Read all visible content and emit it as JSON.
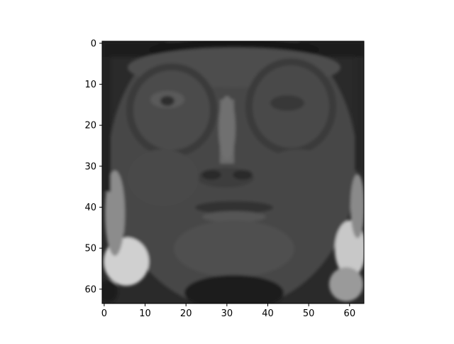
{
  "chart_data": {
    "type": "heatmap",
    "title": "",
    "xlabel": "",
    "ylabel": "",
    "colormap": "gray",
    "image_shape": [
      64,
      64
    ],
    "xlim": [
      -0.5,
      63.5
    ],
    "ylim": [
      63.5,
      -0.5
    ],
    "x_ticks": [
      0,
      10,
      20,
      30,
      40,
      50,
      60
    ],
    "y_ticks": [
      0,
      10,
      20,
      30,
      40,
      50,
      60
    ],
    "x_tick_labels": [
      "0",
      "10",
      "20",
      "30",
      "40",
      "50",
      "60"
    ],
    "y_tick_labels": [
      "0",
      "10",
      "20",
      "30",
      "40",
      "50",
      "60"
    ],
    "grid": false,
    "legend": "none",
    "content": "grayscale face photograph"
  },
  "colors": {
    "axes_frame": "#000000",
    "background": "#ffffff",
    "image_dark": "#181818",
    "image_mid": "#4a4a4a",
    "image_light": "#e8e8e8"
  }
}
